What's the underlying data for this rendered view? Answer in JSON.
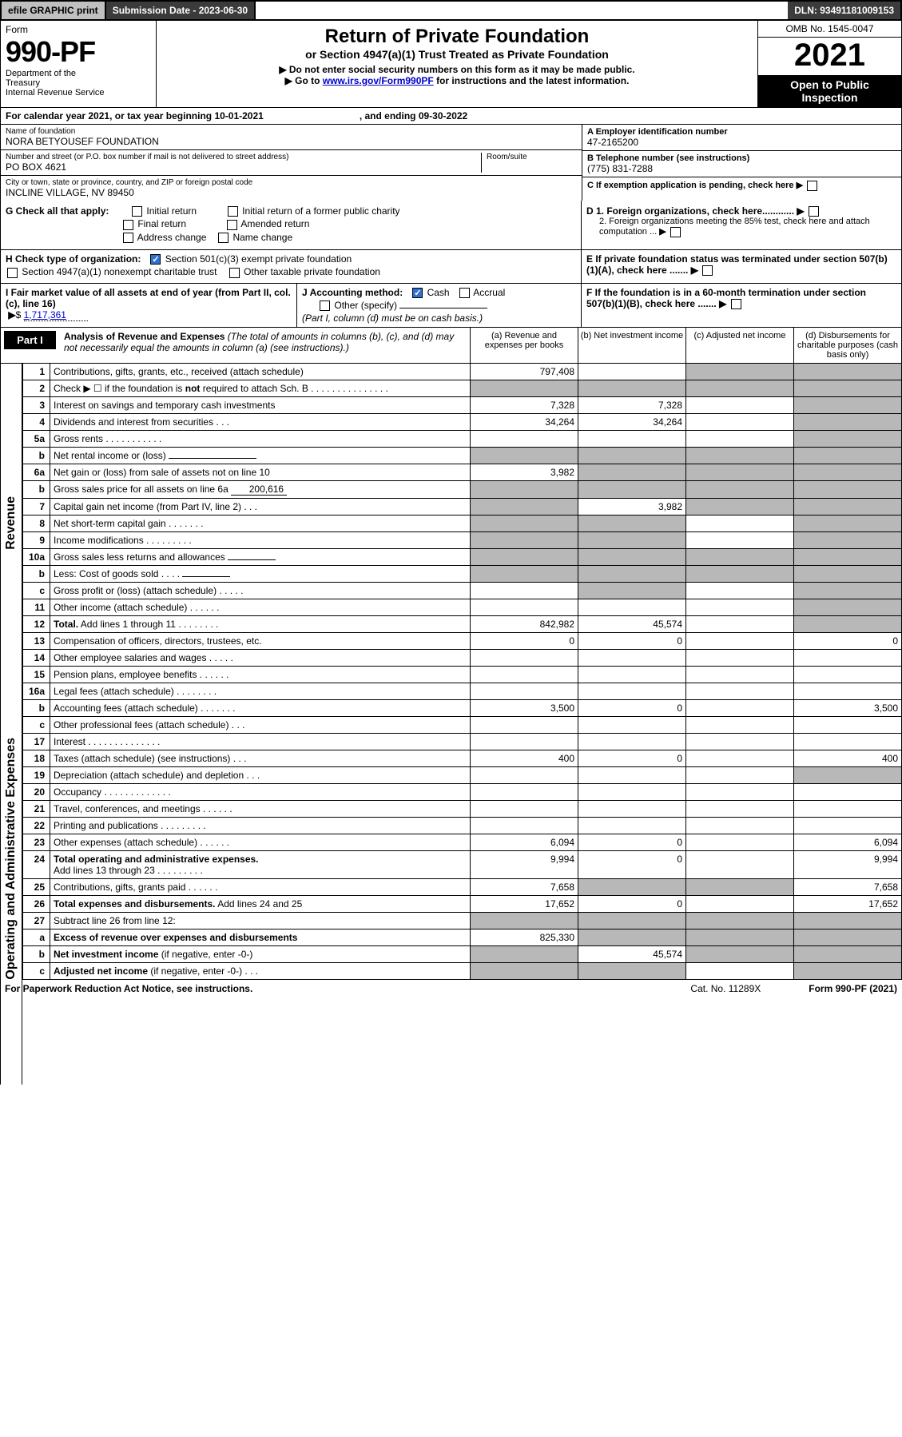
{
  "topbar": {
    "efile": "efile GRAPHIC print",
    "submission_label": "Submission Date - 2023-06-30",
    "dln": "DLN: 93491181009153"
  },
  "header": {
    "form_word": "Form",
    "form_number": "990-PF",
    "dept": "Department of the Treasury\nInternal Revenue Service",
    "title": "Return of Private Foundation",
    "subtitle": "or Section 4947(a)(1) Trust Treated as Private Foundation",
    "bullet1": "▶ Do not enter social security numbers on this form as it may be made public.",
    "bullet2_pre": "▶ Go to ",
    "bullet2_link": "www.irs.gov/Form990PF",
    "bullet2_post": " for instructions and the latest information.",
    "omb": "OMB No. 1545-0047",
    "year": "2021",
    "open": "Open to Public Inspection"
  },
  "calrow": {
    "pre": "For calendar year 2021, or tax year beginning 10-01-2021",
    "mid": ", and ending 09-30-2022"
  },
  "id": {
    "name_lbl": "Name of foundation",
    "name": "NORA BETYOUSEF FOUNDATION",
    "addr_lbl": "Number and street (or P.O. box number if mail is not delivered to street address)",
    "addr": "PO BOX 4621",
    "room_lbl": "Room/suite",
    "city_lbl": "City or town, state or province, country, and ZIP or foreign postal code",
    "city": "INCLINE VILLAGE, NV  89450",
    "ein_lbl": "A Employer identification number",
    "ein": "47-2165200",
    "tel_lbl": "B Telephone number (see instructions)",
    "tel": "(775) 831-7288",
    "c_lbl": "C If exemption application is pending, check here",
    "d1": "D 1. Foreign organizations, check here............",
    "d2": "2. Foreign organizations meeting the 85% test, check here and attach computation ...",
    "e_lbl": "E  If private foundation status was terminated under section 507(b)(1)(A), check here .......",
    "f_lbl": "F  If the foundation is in a 60-month termination under section 507(b)(1)(B), check here .......",
    "g_lbl": "G Check all that apply:",
    "g_initial": "Initial return",
    "g_initial_former": "Initial return of a former public charity",
    "g_final": "Final return",
    "g_amended": "Amended return",
    "g_addr": "Address change",
    "g_name": "Name change",
    "h_lbl": "H Check type of organization:",
    "h_501c3": "Section 501(c)(3) exempt private foundation",
    "h_4947": "Section 4947(a)(1) nonexempt charitable trust",
    "h_other": "Other taxable private foundation",
    "i_lbl": "I Fair market value of all assets at end of year (from Part II, col. (c), line 16)",
    "i_val": "1,717,361",
    "j_lbl": "J Accounting method:",
    "j_cash": "Cash",
    "j_accrual": "Accrual",
    "j_other": "Other (specify)",
    "j_note": "(Part I, column (d) must be on cash basis.)"
  },
  "part1": {
    "label": "Part I",
    "title": "Analysis of Revenue and Expenses",
    "title_note": "(The total of amounts in columns (b), (c), and (d) may not necessarily equal the amounts in column (a) (see instructions).)",
    "col_a": "(a)  Revenue and expenses per books",
    "col_b": "(b)  Net investment income",
    "col_c": "(c)  Adjusted net income",
    "col_d": "(d)  Disbursements for charitable purposes (cash basis only)"
  },
  "side": {
    "revenue": "Revenue",
    "expenses": "Operating and Administrative Expenses"
  },
  "rows": [
    {
      "n": "1",
      "d": "Contributions, gifts, grants, etc., received (attach schedule)",
      "a": "797,408",
      "b": "",
      "c": "shade",
      "dd": "shade"
    },
    {
      "n": "2",
      "d": "Check ▶ ☐ if the foundation is <b>not</b> required to attach Sch. B    .   .   .   .   .   .   .   .   .   .   .   .   .   .   .",
      "a": "shade",
      "b": "shade",
      "c": "shade",
      "dd": "shade"
    },
    {
      "n": "3",
      "d": "Interest on savings and temporary cash investments",
      "a": "7,328",
      "b": "7,328",
      "c": "",
      "dd": "shade"
    },
    {
      "n": "4",
      "d": "Dividends and interest from securities   .   .   .",
      "a": "34,264",
      "b": "34,264",
      "c": "",
      "dd": "shade"
    },
    {
      "n": "5a",
      "d": "Gross rents   .   .   .   .   .   .   .   .   .   .   .",
      "a": "",
      "b": "",
      "c": "",
      "dd": "shade"
    },
    {
      "n": "b",
      "d": "Net rental income or (loss)  <span class=\"smline\"></span>",
      "a": "shade",
      "b": "shade",
      "c": "shade",
      "dd": "shade"
    },
    {
      "n": "6a",
      "d": "Net gain or (loss) from sale of assets not on line 10",
      "a": "3,982",
      "b": "shade",
      "c": "shade",
      "dd": "shade"
    },
    {
      "n": "b",
      "d": "Gross sales price for all assets on line 6a <span class=\"inline-amount\">200,616</span>",
      "a": "shade",
      "b": "shade",
      "c": "shade",
      "dd": "shade"
    },
    {
      "n": "7",
      "d": "Capital gain net income (from Part IV, line 2)   .   .   .",
      "a": "shade",
      "b": "3,982",
      "c": "shade",
      "dd": "shade"
    },
    {
      "n": "8",
      "d": "Net short-term capital gain   .   .   .   .   .   .   .",
      "a": "shade",
      "b": "shade",
      "c": "",
      "dd": "shade"
    },
    {
      "n": "9",
      "d": "Income modifications  .   .   .   .   .   .   .   .   .",
      "a": "shade",
      "b": "shade",
      "c": "",
      "dd": "shade"
    },
    {
      "n": "10a",
      "d": "Gross sales less returns and allowances <span class=\"smline\" style=\"min-width:60px\"></span>",
      "a": "shade",
      "b": "shade",
      "c": "shade",
      "dd": "shade"
    },
    {
      "n": "b",
      "d": "Less: Cost of goods sold   .   .   .   .   <span class=\"smline\" style=\"min-width:60px\"></span>",
      "a": "shade",
      "b": "shade",
      "c": "shade",
      "dd": "shade"
    },
    {
      "n": "c",
      "d": "Gross profit or (loss) (attach schedule)   .   .   .   .   .",
      "a": "",
      "b": "shade",
      "c": "",
      "dd": "shade"
    },
    {
      "n": "11",
      "d": "Other income (attach schedule)   .   .   .   .   .   .",
      "a": "",
      "b": "",
      "c": "",
      "dd": "shade"
    },
    {
      "n": "12",
      "d": "<b>Total.</b> Add lines 1 through 11   .   .   .   .   .   .   .   .",
      "a": "842,982",
      "b": "45,574",
      "c": "",
      "dd": "shade"
    }
  ],
  "exprows": [
    {
      "n": "13",
      "d": "Compensation of officers, directors, trustees, etc.",
      "a": "0",
      "b": "0",
      "c": "",
      "dd": "0"
    },
    {
      "n": "14",
      "d": "Other employee salaries and wages   .   .   .   .   .",
      "a": "",
      "b": "",
      "c": "",
      "dd": ""
    },
    {
      "n": "15",
      "d": "Pension plans, employee benefits  .   .   .   .   .   .",
      "a": "",
      "b": "",
      "c": "",
      "dd": ""
    },
    {
      "n": "16a",
      "d": "Legal fees (attach schedule)  .   .   .   .   .   .   .   .",
      "a": "",
      "b": "",
      "c": "",
      "dd": ""
    },
    {
      "n": "b",
      "d": "Accounting fees (attach schedule)  .   .   .   .   .   .   .",
      "a": "3,500",
      "b": "0",
      "c": "",
      "dd": "3,500"
    },
    {
      "n": "c",
      "d": "Other professional fees (attach schedule)   .   .   .",
      "a": "",
      "b": "",
      "c": "",
      "dd": ""
    },
    {
      "n": "17",
      "d": "Interest  .   .   .   .   .   .   .   .   .   .   .   .   .   .",
      "a": "",
      "b": "",
      "c": "",
      "dd": ""
    },
    {
      "n": "18",
      "d": "Taxes (attach schedule) (see instructions)   .   .   .",
      "a": "400",
      "b": "0",
      "c": "",
      "dd": "400"
    },
    {
      "n": "19",
      "d": "Depreciation (attach schedule) and depletion   .   .   .",
      "a": "",
      "b": "",
      "c": "",
      "dd": "shade"
    },
    {
      "n": "20",
      "d": "Occupancy  .   .   .   .   .   .   .   .   .   .   .   .   .",
      "a": "",
      "b": "",
      "c": "",
      "dd": ""
    },
    {
      "n": "21",
      "d": "Travel, conferences, and meetings  .   .   .   .   .   .",
      "a": "",
      "b": "",
      "c": "",
      "dd": ""
    },
    {
      "n": "22",
      "d": "Printing and publications  .   .   .   .   .   .   .   .   .",
      "a": "",
      "b": "",
      "c": "",
      "dd": ""
    },
    {
      "n": "23",
      "d": "Other expenses (attach schedule)  .   .   .   .   .   .",
      "a": "6,094",
      "b": "0",
      "c": "",
      "dd": "6,094"
    },
    {
      "n": "24",
      "d": "<b>Total operating and administrative expenses.</b><br>Add lines 13 through 23   .   .   .   .   .   .   .   .   .",
      "a": "9,994",
      "b": "0",
      "c": "",
      "dd": "9,994"
    },
    {
      "n": "25",
      "d": "Contributions, gifts, grants paid   .   .   .   .   .   .",
      "a": "7,658",
      "b": "shade",
      "c": "shade",
      "dd": "7,658"
    },
    {
      "n": "26",
      "d": "<b>Total expenses and disbursements.</b> Add lines 24 and 25",
      "a": "17,652",
      "b": "0",
      "c": "",
      "dd": "17,652"
    },
    {
      "n": "27",
      "d": "Subtract line 26 from line 12:",
      "a": "shade",
      "b": "shade",
      "c": "shade",
      "dd": "shade"
    },
    {
      "n": "a",
      "d": "<b>Excess of revenue over expenses and disbursements</b>",
      "a": "825,330",
      "b": "shade",
      "c": "shade",
      "dd": "shade"
    },
    {
      "n": "b",
      "d": "<b>Net investment income</b> (if negative, enter -0-)",
      "a": "shade",
      "b": "45,574",
      "c": "shade",
      "dd": "shade"
    },
    {
      "n": "c",
      "d": "<b>Adjusted net income</b> (if negative, enter -0-)   .   .   .",
      "a": "shade",
      "b": "shade",
      "c": "",
      "dd": "shade"
    }
  ],
  "footer": {
    "left": "For Paperwork Reduction Act Notice, see instructions.",
    "mid": "Cat. No. 11289X",
    "right": "Form 990-PF (2021)"
  },
  "colors": {
    "shade": "#b8b8b8",
    "darkbar": "#3b3b3b",
    "link": "#0000cc"
  }
}
